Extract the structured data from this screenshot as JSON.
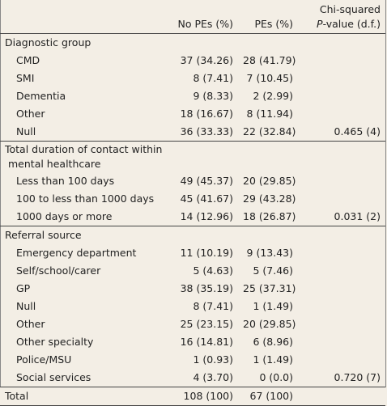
{
  "header": {
    "col1": "",
    "col2": "No PEs (%)",
    "col3": "PEs (%)",
    "col4_line1": "Chi-squared",
    "col4_italic": "P",
    "col4_line2_rest": "-value (d.f.)"
  },
  "sections": [
    {
      "title": "Diagnostic group",
      "rows": [
        {
          "label": "CMD",
          "no_pes": "37 (34.26)",
          "pes": "28 (41.79)",
          "p": ""
        },
        {
          "label": "SMI",
          "no_pes": "8 (7.41)",
          "pes": "7 (10.45)",
          "p": ""
        },
        {
          "label": "Dementia",
          "no_pes": "9 (8.33)",
          "pes": "2 (2.99)",
          "p": ""
        },
        {
          "label": "Other",
          "no_pes": "18 (16.67)",
          "pes": "8 (11.94)",
          "p": ""
        },
        {
          "label": "Null",
          "no_pes": "36 (33.33)",
          "pes": "22 (32.84)",
          "p": "0.465 (4)"
        }
      ]
    },
    {
      "title_line1": "Total duration of contact within",
      "title_line2": "mental healthcare",
      "rows": [
        {
          "label": "Less than 100 days",
          "no_pes": "49 (45.37)",
          "pes": "20 (29.85)",
          "p": ""
        },
        {
          "label": "100 to less than 1000 days",
          "no_pes": "45 (41.67)",
          "pes": "29 (43.28)",
          "p": ""
        },
        {
          "label": "1000 days or more",
          "no_pes": "14 (12.96)",
          "pes": "18 (26.87)",
          "p": "0.031 (2)"
        }
      ]
    },
    {
      "title": "Referral source",
      "rows": [
        {
          "label": "Emergency department",
          "no_pes": "11 (10.19)",
          "pes": "9 (13.43)",
          "p": ""
        },
        {
          "label": "Self/school/carer",
          "no_pes": "5 (4.63)",
          "pes": "5 (7.46)",
          "p": ""
        },
        {
          "label": "GP",
          "no_pes": "38 (35.19)",
          "pes": "25 (37.31)",
          "p": ""
        },
        {
          "label": "Null",
          "no_pes": "8 (7.41)",
          "pes": "1 (1.49)",
          "p": ""
        },
        {
          "label": "Other",
          "no_pes": "25 (23.15)",
          "pes": "20 (29.85)",
          "p": ""
        },
        {
          "label": "Other specialty",
          "no_pes": "16 (14.81)",
          "pes": "6 (8.96)",
          "p": ""
        },
        {
          "label": "Police/MSU",
          "no_pes": "1 (0.93)",
          "pes": "1 (1.49)",
          "p": ""
        },
        {
          "label": "Social services",
          "no_pes": "4 (3.70)",
          "pes": "0 (0.0)",
          "p": "0.720 (7)"
        }
      ]
    }
  ],
  "total": {
    "label": "Total",
    "no_pes": "108 (100)",
    "pes": "67 (100)",
    "p": ""
  },
  "colors": {
    "background": "#f3eee5",
    "rule": "#444444",
    "text": "#222222"
  }
}
